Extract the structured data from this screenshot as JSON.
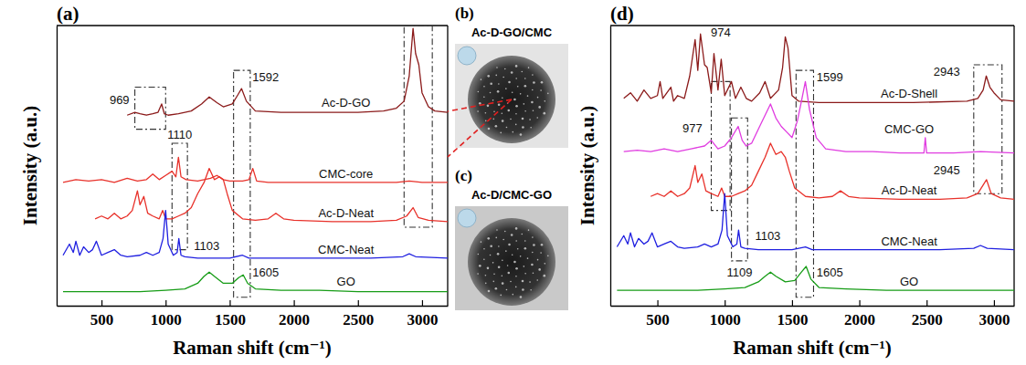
{
  "chart_data": [
    {
      "type": "line",
      "panel": "(a)",
      "xlabel": "Raman shift (cm⁻¹)",
      "ylabel": "Intensity (a.u.)",
      "xlim": [
        150,
        3200
      ],
      "ylim": [
        0,
        100
      ],
      "xticks": [
        500,
        1000,
        1500,
        2000,
        2500,
        3000
      ],
      "tick_labels": "x",
      "grid": false,
      "series": [
        {
          "name": "Ac-D-GO",
          "color": "#8b1a1a",
          "x": [
            700,
            760,
            800,
            850,
            900,
            940,
            969,
            990,
            1020,
            1100,
            1200,
            1280,
            1340,
            1400,
            1450,
            1520,
            1560,
            1592,
            1630,
            1700,
            1900,
            2200,
            2500,
            2700,
            2800,
            2860,
            2900,
            2930,
            2950,
            2975,
            3000,
            3050,
            3100,
            3200
          ],
          "values": [
            68,
            69,
            68.5,
            68,
            68.5,
            69,
            72,
            68.5,
            68,
            68.5,
            69.5,
            72,
            74.5,
            72.5,
            71,
            72,
            75,
            77.5,
            73,
            69.5,
            69,
            69,
            69,
            69.5,
            70.5,
            73,
            82,
            99,
            90,
            86,
            76,
            71,
            69.5,
            69
          ]
        },
        {
          "name": "CMC-core",
          "color": "#e8312a",
          "x": [
            200,
            300,
            400,
            500,
            600,
            700,
            780,
            850,
            900,
            950,
            1000,
            1050,
            1080,
            1100,
            1120,
            1160,
            1250,
            1350,
            1400,
            1450,
            1500,
            1600,
            1650,
            1680,
            1710,
            1800,
            2000,
            2400,
            2800,
            2900,
            3000,
            3200
          ],
          "values": [
            44,
            45,
            44.5,
            45,
            44,
            45.5,
            44.5,
            45,
            47,
            45,
            46.5,
            48,
            46,
            53,
            46,
            45,
            44.5,
            45.5,
            46.5,
            45,
            44.5,
            44.5,
            45,
            49,
            44.5,
            44,
            44,
            44,
            44,
            44.5,
            44,
            44
          ]
        },
        {
          "name": "Ac-D-Neat",
          "color": "#e8312a",
          "x": [
            450,
            500,
            550,
            600,
            650,
            700,
            740,
            780,
            800,
            830,
            860,
            900,
            950,
            977,
            1000,
            1050,
            1100,
            1150,
            1200,
            1250,
            1300,
            1340,
            1380,
            1420,
            1450,
            1480,
            1520,
            1600,
            1700,
            1800,
            1860,
            1920,
            2000,
            2300,
            2600,
            2800,
            2880,
            2930,
            2970,
            3050,
            3200
          ],
          "values": [
            31,
            32,
            31,
            33,
            31,
            32,
            34,
            41,
            36,
            39,
            33,
            32,
            31,
            34,
            31,
            31,
            32,
            33,
            35,
            40,
            44,
            49,
            45,
            46,
            45,
            40,
            34,
            31,
            30.5,
            31,
            33,
            31,
            30.5,
            30,
            30,
            30.5,
            32,
            35,
            31.5,
            30.5,
            30
          ]
        },
        {
          "name": "CMC-Neat",
          "color": "#1f1fe0",
          "x": [
            200,
            250,
            280,
            300,
            330,
            360,
            400,
            430,
            460,
            500,
            550,
            600,
            650,
            700,
            800,
            850,
            900,
            950,
            980,
            1000,
            1020,
            1060,
            1090,
            1103,
            1120,
            1150,
            1250,
            1400,
            1500,
            1600,
            1650,
            1800,
            2200,
            2600,
            2850,
            2900,
            2950,
            3200
          ],
          "values": [
            18,
            22,
            19,
            23,
            18,
            21,
            19,
            20,
            23,
            18,
            19,
            20,
            18,
            17.5,
            18,
            19,
            18,
            19,
            24,
            34,
            22,
            18,
            19,
            24,
            18,
            17.5,
            17,
            17,
            17,
            18,
            17,
            17,
            17,
            17,
            17.5,
            18.5,
            17.5,
            17
          ]
        },
        {
          "name": "GO",
          "color": "#169c16",
          "x": [
            200,
            400,
            600,
            800,
            1000,
            1150,
            1250,
            1300,
            1340,
            1380,
            1450,
            1520,
            1570,
            1605,
            1640,
            1700,
            1900,
            2200,
            2500,
            2800,
            3000,
            3200
          ],
          "values": [
            5,
            5,
            5,
            5,
            5.5,
            6,
            8,
            10.5,
            12,
            10.5,
            8,
            8,
            10,
            11,
            8,
            6,
            5.5,
            5.5,
            5,
            5,
            5,
            5
          ]
        }
      ],
      "highlights": [
        {
          "x": [
            760,
            1000
          ],
          "y": [
            63,
            78
          ]
        },
        {
          "x": [
            1050,
            1170
          ],
          "y": [
            20,
            58
          ]
        },
        {
          "x": [
            1530,
            1660
          ],
          "y": [
            3,
            84
          ]
        },
        {
          "x": [
            2860,
            3080
          ],
          "y": [
            28,
            100
          ]
        }
      ],
      "annotations": [
        {
          "value": 969,
          "x": 640,
          "y": 72
        },
        {
          "value": 1110,
          "x": 1110,
          "y": 59.5
        },
        {
          "value": 1103,
          "x": 1320,
          "y": 20
        },
        {
          "value": 1592,
          "x": 1780,
          "y": 80
        },
        {
          "value": 1605,
          "x": 1780,
          "y": 10.5
        }
      ]
    },
    {
      "type": "line",
      "panel": "(d)",
      "xlabel": "Raman shift (cm⁻¹)",
      "ylabel": "Intensity (a.u.)",
      "xlim": [
        150,
        3150
      ],
      "ylim": [
        0,
        100
      ],
      "xticks": [
        500,
        1000,
        1500,
        2000,
        2500,
        3000
      ],
      "tick_labels": "x",
      "grid": false,
      "series": [
        {
          "name": "Ac-D-Shell",
          "color": "#8b1a1a",
          "x": [
            250,
            300,
            350,
            400,
            450,
            500,
            520,
            540,
            600,
            620,
            650,
            700,
            740,
            780,
            800,
            820,
            850,
            870,
            900,
            920,
            950,
            974,
            1000,
            1050,
            1080,
            1120,
            1160,
            1200,
            1260,
            1300,
            1340,
            1400,
            1430,
            1450,
            1470,
            1500,
            1550,
            1700,
            2000,
            2400,
            2800,
            2880,
            2920,
            2943,
            2970,
            3000,
            3050,
            3150
          ],
          "values": [
            74,
            76,
            73,
            77,
            74,
            75,
            80,
            74,
            78,
            73,
            75,
            74,
            82,
            95,
            84,
            97,
            86,
            85,
            76,
            90,
            77,
            88,
            75,
            80,
            74,
            78,
            74,
            73,
            76,
            80,
            74,
            77,
            85,
            96,
            92,
            75,
            73,
            72.5,
            72.5,
            72.5,
            73,
            74,
            77,
            82,
            78,
            76,
            73.5,
            73
          ]
        },
        {
          "name": "CMC-GO",
          "color": "#e03ce0",
          "x": [
            250,
            350,
            450,
            550,
            650,
            750,
            850,
            900,
            950,
            1000,
            1050,
            1100,
            1130,
            1160,
            1200,
            1250,
            1300,
            1340,
            1380,
            1420,
            1460,
            1500,
            1540,
            1570,
            1599,
            1630,
            1680,
            1750,
            1900,
            2100,
            2300,
            2480,
            2490,
            2500,
            2700,
            2900,
            3150
          ],
          "values": [
            55,
            55.5,
            55,
            56,
            55,
            56,
            57,
            59,
            56,
            57,
            60,
            64,
            59,
            57,
            58,
            63,
            68,
            72,
            67,
            64,
            62,
            60,
            66,
            73,
            80,
            70,
            60,
            56,
            55,
            55,
            54.5,
            54.5,
            60,
            54.5,
            54.5,
            55,
            54.5
          ]
        },
        {
          "name": "Ac-D-Neat",
          "color": "#e8312a",
          "x": [
            450,
            500,
            550,
            600,
            650,
            700,
            740,
            780,
            800,
            830,
            860,
            900,
            950,
            977,
            1000,
            1050,
            1100,
            1150,
            1200,
            1250,
            1300,
            1340,
            1380,
            1420,
            1450,
            1480,
            1520,
            1600,
            1700,
            1800,
            1860,
            1920,
            2000,
            2300,
            2600,
            2800,
            2880,
            2945,
            2980,
            3050,
            3150
          ],
          "values": [
            39,
            40,
            39,
            41,
            39,
            40,
            42,
            50,
            44,
            47,
            41,
            40,
            39,
            42,
            39,
            39,
            40,
            41,
            43,
            48,
            53,
            58,
            54,
            55,
            53,
            48,
            42,
            39,
            38.5,
            39,
            41,
            39,
            38.5,
            38,
            38,
            38.5,
            40,
            45,
            40,
            38.5,
            38
          ]
        },
        {
          "name": "CMC-Neat",
          "color": "#1f1fe0",
          "x": [
            200,
            250,
            280,
            300,
            330,
            360,
            400,
            430,
            460,
            500,
            550,
            600,
            650,
            700,
            800,
            850,
            900,
            950,
            980,
            1000,
            1020,
            1060,
            1090,
            1103,
            1120,
            1150,
            1250,
            1400,
            1500,
            1600,
            1650,
            1800,
            2200,
            2600,
            2850,
            2900,
            2950,
            3150
          ],
          "values": [
            21,
            25,
            22,
            26,
            21,
            24,
            22,
            23,
            26,
            21,
            22,
            23,
            21,
            20.5,
            21,
            22,
            21,
            22,
            27,
            40,
            25,
            21,
            22,
            27,
            21,
            20.5,
            20,
            20,
            20,
            21,
            20,
            20,
            20,
            20,
            20.5,
            21.5,
            20.5,
            20
          ]
        },
        {
          "name": "GO",
          "color": "#169c16",
          "x": [
            200,
            400,
            600,
            800,
            1000,
            1150,
            1250,
            1300,
            1340,
            1380,
            1450,
            1520,
            1570,
            1605,
            1640,
            1700,
            1900,
            2200,
            2500,
            2800,
            3000,
            3150
          ],
          "values": [
            5.5,
            5.5,
            5.5,
            5.5,
            6,
            6.5,
            8.5,
            10.5,
            12,
            10.5,
            8.5,
            9,
            12,
            14,
            9.5,
            6.5,
            6,
            5.5,
            5.5,
            5.5,
            5.5,
            5.5
          ]
        }
      ],
      "highlights": [
        {
          "x": [
            900,
            1040
          ],
          "y": [
            34,
            80
          ]
        },
        {
          "x": [
            1050,
            1170
          ],
          "y": [
            16,
            67
          ]
        },
        {
          "x": [
            1530,
            1660
          ],
          "y": [
            3,
            84
          ]
        },
        {
          "x": [
            2850,
            3060
          ],
          "y": [
            40,
            86
          ]
        }
      ],
      "annotations": [
        {
          "value": 974,
          "x": 970,
          "y": 96
        },
        {
          "value": 977,
          "x": 760,
          "y": 62
        },
        {
          "value": 1109,
          "x": 1110,
          "y": 10.5
        },
        {
          "value": 1103,
          "x": 1320,
          "y": 23.5
        },
        {
          "value": 1599,
          "x": 1780,
          "y": 80
        },
        {
          "value": 1605,
          "x": 1780,
          "y": 10.5
        },
        {
          "value": 2943,
          "x": 2650,
          "y": 82
        },
        {
          "value": 2945,
          "x": 2650,
          "y": 47
        }
      ]
    }
  ],
  "insets": [
    {
      "panel": "(b)",
      "label": "Ac-D-GO/CMC"
    },
    {
      "panel": "(c)",
      "label": "Ac-D/CMC-GO"
    }
  ]
}
